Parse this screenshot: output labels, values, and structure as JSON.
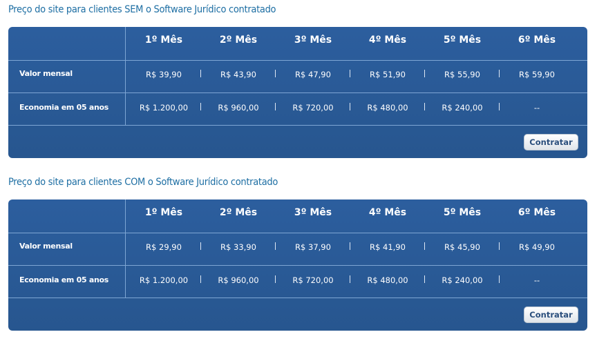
{
  "months": [
    "1º Mês",
    "2º Mês",
    "3º Mês",
    "4º Mês",
    "5º Mês",
    "6º Mês"
  ],
  "row_labels": {
    "monthly": "Valor mensal",
    "savings": "Economia em 05 anos"
  },
  "button_label": "Contratar",
  "tables": [
    {
      "title": "Preço do site para clientes SEM o Software Jurídico contratado",
      "monthly": [
        "R$ 39,90",
        "R$ 43,90",
        "R$ 47,90",
        "R$ 51,90",
        "R$ 55,90",
        "R$ 59,90"
      ],
      "savings": [
        "R$ 1.200,00",
        "R$ 960,00",
        "R$ 720,00",
        "R$ 480,00",
        "R$ 240,00",
        "--"
      ]
    },
    {
      "title": "Preço do site para clientes COM o Software Jurídico contratado",
      "monthly": [
        "R$ 29,90",
        "R$ 33,90",
        "R$ 37,90",
        "R$ 41,90",
        "R$ 45,90",
        "R$ 49,90"
      ],
      "savings": [
        "R$ 1.200,00",
        "R$ 960,00",
        "R$ 720,00",
        "R$ 480,00",
        "R$ 240,00",
        "--"
      ]
    }
  ],
  "colors": {
    "title": "#1d6ea3",
    "panel": "#2a5b9a",
    "grid": "#7ea6d4"
  }
}
